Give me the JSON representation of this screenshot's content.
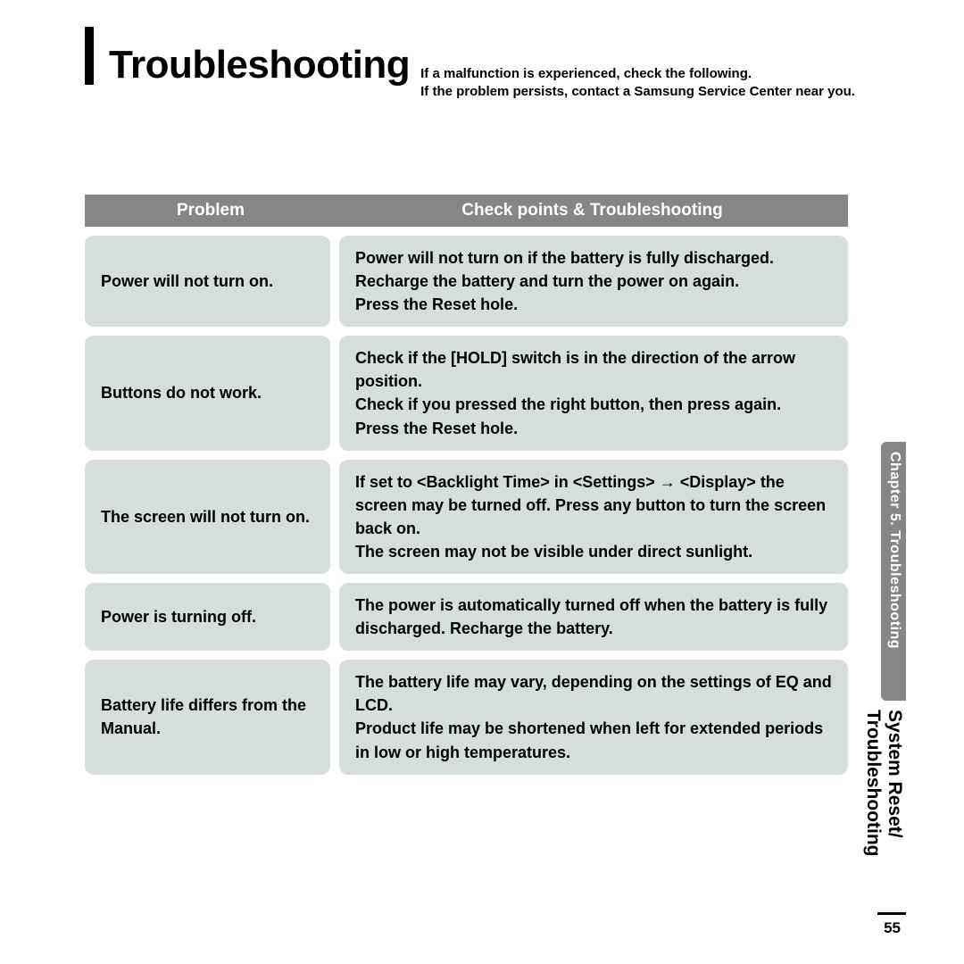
{
  "page": {
    "title": "Troubleshooting",
    "intro1": "If a malfunction is experienced, check the following.",
    "intro2": "If the problem persists, contact a Samsung Service Center near you.",
    "page_number": "55"
  },
  "colors": {
    "header_bg": "#858686",
    "header_text": "#ffffff",
    "cell_bg": "#d6dedb",
    "text": "#000000"
  },
  "table": {
    "head_left": "Problem",
    "head_right": "Check points & Troubleshooting",
    "rows": [
      {
        "problem": "Power will not turn on.",
        "solution_lines": [
          "Power will not turn on if the battery is fully discharged.",
          "Recharge the battery and turn the power on again.",
          "Press the Reset hole."
        ]
      },
      {
        "problem": "Buttons do not work.",
        "solution_lines": [
          "Check if the [HOLD] switch is in the direction of the arrow position.",
          "Check if you pressed the right button, then press again.",
          "Press the Reset hole."
        ]
      },
      {
        "problem": "The screen will not turn on.",
        "solution_lines": [
          "If set to <Backlight Time> in <Settings> → <Display> the screen may be turned off. Press any button to turn the screen back on.",
          "The screen may not be visible under direct sunlight."
        ]
      },
      {
        "problem": "Power is turning off.",
        "solution_lines": [
          "The power is automatically turned off when the battery is fully discharged. Recharge the battery."
        ]
      },
      {
        "problem": "Battery life differs from the Manual.",
        "solution_lines": [
          "The battery life may vary, depending on the settings of EQ and LCD.",
          "Product life may be shortened when left for extended periods in low or high temperatures."
        ]
      }
    ]
  },
  "sidebar": {
    "chapter": "Chapter 5. Troubleshooting",
    "section1": "System Reset/",
    "section2": "Troubleshooting"
  }
}
